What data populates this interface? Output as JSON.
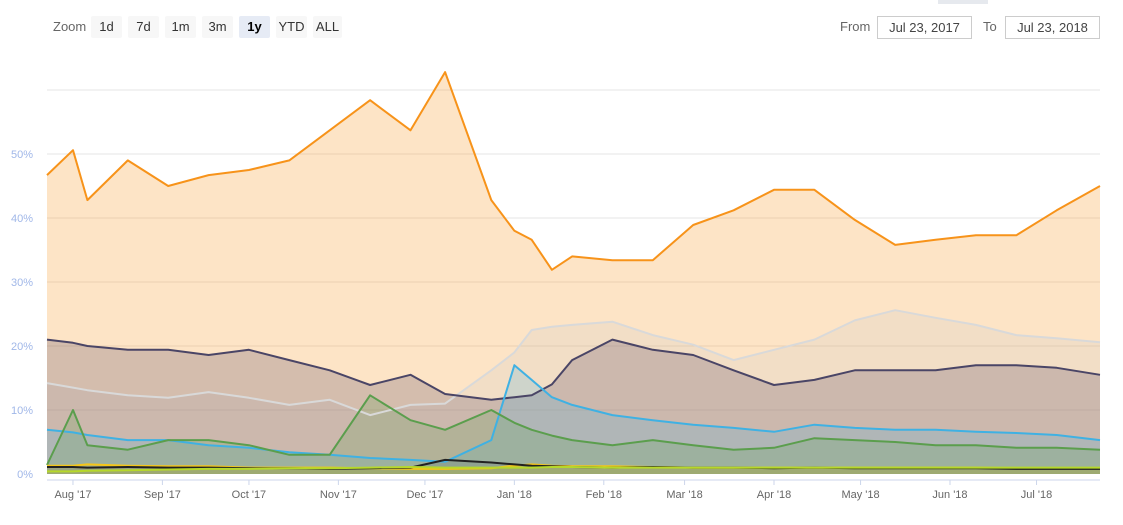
{
  "toolbar": {
    "zoom_label": "Zoom",
    "buttons": [
      "1d",
      "7d",
      "1m",
      "3m",
      "1y",
      "YTD",
      "ALL"
    ],
    "active_button": "1y",
    "from_label": "From",
    "from_value": "Jul 23, 2017",
    "to_label": "To",
    "to_value": "Jul 23, 2018"
  },
  "chart_data": {
    "type": "area",
    "ylim": [
      0,
      60
    ],
    "yticks": [
      "0%",
      "10%",
      "20%",
      "30%",
      "40%",
      "50%"
    ],
    "xticks": [
      "Aug '17",
      "Sep '17",
      "Oct '17",
      "Nov '17",
      "Dec '17",
      "Jan '18",
      "Feb '18",
      "Mar '18",
      "Apr '18",
      "May '18",
      "Jun '18",
      "Jul '18"
    ],
    "grid": true,
    "x": [
      "2017-07-23",
      "2017-08-01",
      "2017-08-06",
      "2017-08-20",
      "2017-09-03",
      "2017-09-17",
      "2017-10-01",
      "2017-10-15",
      "2017-10-29",
      "2017-11-12",
      "2017-11-26",
      "2017-12-08",
      "2017-12-24",
      "2018-01-01",
      "2018-01-07",
      "2018-01-14",
      "2018-01-21",
      "2018-02-04",
      "2018-02-18",
      "2018-03-04",
      "2018-03-18",
      "2018-04-01",
      "2018-04-15",
      "2018-04-29",
      "2018-05-13",
      "2018-05-27",
      "2018-06-10",
      "2018-06-24",
      "2018-07-08",
      "2018-07-23"
    ],
    "series": [
      {
        "color": "#f7931a",
        "fill": "rgba(247,147,26,0.25)",
        "values": [
          46.7,
          50.6,
          42.8,
          49,
          45,
          46.7,
          47.5,
          49,
          53.7,
          58.4,
          53.7,
          62.8,
          42.8,
          38,
          36.6,
          31.9,
          34,
          33.4,
          33.4,
          38.9,
          41.2,
          44.4,
          44.4,
          39.7,
          35.8,
          36.6,
          37.3,
          37.3,
          41.2,
          45
        ]
      },
      {
        "color": "#d9d9d9",
        "fill": "rgba(200,200,200,0.2)",
        "values": [
          14.2,
          13.5,
          13.1,
          12.3,
          11.9,
          12.8,
          11.9,
          10.8,
          11.6,
          9.2,
          10.8,
          11,
          16.2,
          19,
          22.5,
          23,
          23.3,
          23.8,
          21.7,
          20.2,
          17.8,
          19.4,
          21,
          24,
          25.6,
          24.4,
          23.3,
          21.7,
          21.2,
          20.6
        ]
      },
      {
        "color": "#4a4566",
        "fill": "rgba(90,70,100,0.25)",
        "values": [
          21,
          20.5,
          20,
          19.4,
          19.4,
          18.6,
          19.4,
          17.8,
          16.2,
          13.9,
          15.5,
          12.5,
          11.6,
          12,
          12.3,
          14,
          17.8,
          21,
          19.4,
          18.6,
          16.2,
          13.9,
          14.7,
          16.2,
          16.2,
          16.2,
          17,
          17,
          16.6,
          15.5
        ]
      },
      {
        "color": "#3fb1e3",
        "fill": "rgba(63,177,227,0.2)",
        "values": [
          6.9,
          6.5,
          6.1,
          5.3,
          5.3,
          4.5,
          4.1,
          3.4,
          3,
          2.5,
          2.2,
          1.9,
          5.3,
          17,
          14.7,
          12,
          10.8,
          9.2,
          8.4,
          7.7,
          7.2,
          6.6,
          7.7,
          7.2,
          6.9,
          6.9,
          6.6,
          6.4,
          6.1,
          5.3
        ]
      },
      {
        "color": "#5b9e4d",
        "fill": "rgba(91,158,77,0.22)",
        "values": [
          1.4,
          10,
          4.5,
          3.8,
          5.3,
          5.3,
          4.5,
          3,
          3,
          12.3,
          8.4,
          6.9,
          10,
          8,
          6.9,
          6,
          5.3,
          4.5,
          5.3,
          4.5,
          3.8,
          4.1,
          5.6,
          5.3,
          5,
          4.5,
          4.5,
          4.1,
          4.1,
          3.8
        ]
      },
      {
        "color": "#f5c518",
        "fill": "rgba(245,197,24,0.15)",
        "values": [
          1.3,
          1.3,
          1.5,
          1.3,
          1.2,
          1.2,
          1,
          1,
          1,
          0.9,
          0.8,
          0.8,
          0.9,
          1.3,
          1.5,
          1.3,
          1.2,
          1.2,
          1.1,
          1,
          1,
          1,
          1,
          1,
          1,
          1,
          1,
          0.9,
          0.9,
          0.9
        ]
      },
      {
        "color": "#222222",
        "fill": "rgba(30,30,30,0.1)",
        "values": [
          1.1,
          1.1,
          1,
          1.1,
          1,
          1,
          0.9,
          0.9,
          0.8,
          0.9,
          1,
          2.2,
          1.8,
          1.5,
          1.3,
          1.2,
          1.1,
          1,
          1.1,
          1,
          1,
          0.9,
          1,
          0.9,
          0.9,
          0.9,
          0.9,
          0.8,
          0.8,
          0.8
        ]
      },
      {
        "color": "#b6d82a",
        "fill": "rgba(182,216,42,0.15)",
        "values": [
          0.4,
          0.4,
          0.5,
          0.6,
          0.7,
          0.8,
          0.8,
          0.9,
          0.9,
          1,
          1.1,
          1,
          1,
          1,
          1,
          1.1,
          1.1,
          1,
          1,
          1,
          1,
          1,
          1,
          1,
          1,
          1,
          1,
          1,
          1,
          1
        ]
      }
    ]
  }
}
